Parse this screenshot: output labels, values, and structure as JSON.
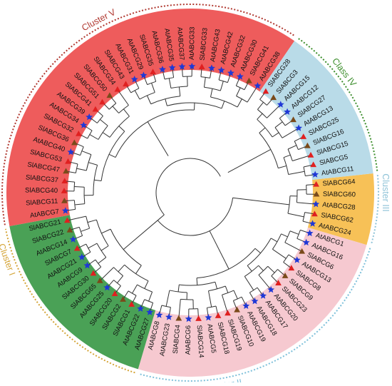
{
  "colors": {
    "cluster_v": "#ee5c5c",
    "class_iv": "#b9dbe8",
    "cluster_iii": "#f7c157",
    "cluster_ii": "#f6c9d0",
    "cluster_i": "#4aa156",
    "cluster_v_arc": "#b0372f",
    "class_iv_arc": "#3e8f2e",
    "cluster_iii_arc": "#8fc3d8",
    "cluster_ii_arc": "#7ec0da",
    "cluster_i_arc": "#d4a437",
    "marker_red": "#e02020",
    "marker_brown": "#7a4a1a",
    "marker_blue": "#1f38d6",
    "branch": "#333333"
  },
  "cluster_labels": {
    "cluster_v": "Cluster V",
    "class_iv": "Class IV",
    "cluster_iii": "Cluster III",
    "cluster_ii": "Cluster II",
    "cluster_i": "Cluster I"
  },
  "leaves": [
    {
      "label": "SlABCG64",
      "marker": "triangle",
      "cluster": "cluster_iii"
    },
    {
      "label": "SlABCG60",
      "marker": "triangle",
      "cluster": "cluster_iii"
    },
    {
      "label": "AtABCG28",
      "marker": "star",
      "cluster": "cluster_iii"
    },
    {
      "label": "SlABCG62",
      "marker": "triangle",
      "cluster": "cluster_iii"
    },
    {
      "label": "AtABCG24",
      "marker": "star",
      "cluster": "cluster_iii"
    },
    {
      "label": "AtABCG1",
      "marker": "star",
      "cluster": "cluster_ii"
    },
    {
      "label": "AtABCG16",
      "marker": "star",
      "cluster": "cluster_ii"
    },
    {
      "label": "SlABCG6",
      "marker": "triangle",
      "cluster": "cluster_ii"
    },
    {
      "label": "AtABCG13",
      "marker": "star",
      "cluster": "cluster_ii"
    },
    {
      "label": "SlABCG8",
      "marker": "triangle",
      "cluster": "cluster_ii"
    },
    {
      "label": "SlABCG9",
      "marker": "triangle",
      "cluster": "cluster_ii"
    },
    {
      "label": "SlABCG23",
      "marker": "triangle",
      "cluster": "cluster_ii"
    },
    {
      "label": "AtABCG20",
      "marker": "star",
      "cluster": "cluster_ii"
    },
    {
      "label": "AtABCG17",
      "marker": "star",
      "cluster": "cluster_ii"
    },
    {
      "label": "AtABCG18",
      "marker": "star",
      "cluster": "cluster_ii"
    },
    {
      "label": "AtABCG19",
      "marker": "star",
      "cluster": "cluster_ii"
    },
    {
      "label": "SlABCG10",
      "marker": "triangle",
      "cluster": "cluster_ii"
    },
    {
      "label": "SlABCG19",
      "marker": "triangle",
      "cluster": "cluster_ii"
    },
    {
      "label": "SlABCG18",
      "marker": "triangle",
      "cluster": "cluster_ii"
    },
    {
      "label": "AtABCG5",
      "marker": "star",
      "cluster": "cluster_ii"
    },
    {
      "label": "SlABCG14",
      "marker": "triangle",
      "cluster": "cluster_ii"
    },
    {
      "label": "AtABCG6",
      "marker": "star",
      "cluster": "cluster_ii"
    },
    {
      "label": "SlABCG4",
      "marker": "triangle",
      "cluster": "cluster_ii"
    },
    {
      "label": "AtABCG23",
      "marker": "star",
      "cluster": "cluster_ii"
    },
    {
      "label": "AtABCG8",
      "marker": "star",
      "cluster": "cluster_ii"
    },
    {
      "label": "AtABCG27",
      "marker": "star",
      "cluster": "cluster_i"
    },
    {
      "label": "AtABCG22",
      "marker": "star",
      "cluster": "cluster_i"
    },
    {
      "label": "SlABCG1",
      "marker": "triangle",
      "cluster": "cluster_i"
    },
    {
      "label": "SlABCG2",
      "marker": "triangle",
      "cluster": "cluster_i"
    },
    {
      "label": "SlABCG20",
      "marker": "triangle",
      "cluster": "cluster_i"
    },
    {
      "label": "AtABCG25",
      "marker": "star",
      "cluster": "cluster_i"
    },
    {
      "label": "SlABCG65",
      "marker": "triangle",
      "cluster": "cluster_i"
    },
    {
      "label": "SlABCG30",
      "marker": "triangle",
      "cluster": "cluster_i"
    },
    {
      "label": "AtABCG9",
      "marker": "star",
      "cluster": "cluster_i"
    },
    {
      "label": "AtABCG21",
      "marker": "star",
      "cluster": "cluster_i"
    },
    {
      "label": "SlABCG7",
      "marker": "triangle",
      "cluster": "cluster_i"
    },
    {
      "label": "AtABCG14",
      "marker": "star",
      "cluster": "cluster_i"
    },
    {
      "label": "SlABCG22",
      "marker": "triangle",
      "cluster": "cluster_i"
    },
    {
      "label": "SlABCG21",
      "marker": "triangle",
      "cluster": "cluster_i"
    },
    {
      "label": "AtABCG7",
      "marker": "star",
      "cluster": "cluster_v"
    },
    {
      "label": "SlABCG11",
      "marker": "triangle",
      "cluster": "cluster_v"
    },
    {
      "label": "SlABCG40",
      "marker": "triangle",
      "cluster": "cluster_v"
    },
    {
      "label": "SlABCG37",
      "marker": "triangle",
      "cluster": "cluster_v"
    },
    {
      "label": "SlABCG47",
      "marker": "triangle",
      "cluster": "cluster_v"
    },
    {
      "label": "SlABCG53",
      "marker": "triangle",
      "cluster": "cluster_v"
    },
    {
      "label": "AtABCG40",
      "marker": "star",
      "cluster": "cluster_v"
    },
    {
      "label": "SlABCG36",
      "marker": "triangle",
      "cluster": "cluster_v"
    },
    {
      "label": "SlABCG32",
      "marker": "triangle",
      "cluster": "cluster_v"
    },
    {
      "label": "AtABCG34",
      "marker": "star",
      "cluster": "cluster_v"
    },
    {
      "label": "AtABCG39",
      "marker": "star",
      "cluster": "cluster_v"
    },
    {
      "label": "SlABCG41",
      "marker": "triangle",
      "cluster": "cluster_v"
    },
    {
      "label": "SlABCG51",
      "marker": "triangle",
      "cluster": "cluster_v"
    },
    {
      "label": "SlABCG50",
      "marker": "triangle",
      "cluster": "cluster_v"
    },
    {
      "label": "SlABCG34",
      "marker": "triangle",
      "cluster": "cluster_v"
    },
    {
      "label": "SlABCG43",
      "marker": "triangle",
      "cluster": "cluster_v"
    },
    {
      "label": "AtABCG31",
      "marker": "star",
      "cluster": "cluster_v"
    },
    {
      "label": "AtABCG29",
      "marker": "star",
      "cluster": "cluster_v"
    },
    {
      "label": "SlABCG35",
      "marker": "triangle",
      "cluster": "cluster_v"
    },
    {
      "label": "AtABCG36",
      "marker": "star",
      "cluster": "cluster_v"
    },
    {
      "label": "AtABCG35",
      "marker": "star",
      "cluster": "cluster_v"
    },
    {
      "label": "AtABCG37",
      "marker": "star",
      "cluster": "cluster_v"
    },
    {
      "label": "AtABCG33",
      "marker": "star",
      "cluster": "cluster_v"
    },
    {
      "label": "SlABCG33",
      "marker": "triangle",
      "cluster": "cluster_v"
    },
    {
      "label": "AtABCG43",
      "marker": "star",
      "cluster": "cluster_v"
    },
    {
      "label": "AtABCG42",
      "marker": "star",
      "cluster": "cluster_v"
    },
    {
      "label": "AtABCG32",
      "marker": "star",
      "cluster": "cluster_v"
    },
    {
      "label": "AtABCG30",
      "marker": "star",
      "cluster": "cluster_v"
    },
    {
      "label": "SlABCG41",
      "marker": "triangle",
      "cluster": "cluster_v"
    },
    {
      "label": "AtABCG38",
      "marker": "star",
      "cluster": "cluster_v"
    },
    {
      "label": "SlABCG28",
      "marker": "triangle",
      "cluster": "class_iv"
    },
    {
      "label": "SlABCG3",
      "marker": "triangle",
      "cluster": "class_iv"
    },
    {
      "label": "AtABCG15",
      "marker": "star",
      "cluster": "class_iv"
    },
    {
      "label": "AtABCG12",
      "marker": "star",
      "cluster": "class_iv"
    },
    {
      "label": "SlABCG27",
      "marker": "triangle",
      "cluster": "class_iv"
    },
    {
      "label": "AtABCG13",
      "marker": "star",
      "cluster": "class_iv"
    },
    {
      "label": "SlABCG25",
      "marker": "triangle",
      "cluster": "class_iv"
    },
    {
      "label": "SlABCG16",
      "marker": "triangle",
      "cluster": "class_iv"
    },
    {
      "label": "SlABCG15",
      "marker": "triangle",
      "cluster": "class_iv"
    },
    {
      "label": "SlABCG5",
      "marker": "triangle",
      "cluster": "class_iv"
    },
    {
      "label": "AtABCG11",
      "marker": "star",
      "cluster": "class_iv"
    }
  ]
}
